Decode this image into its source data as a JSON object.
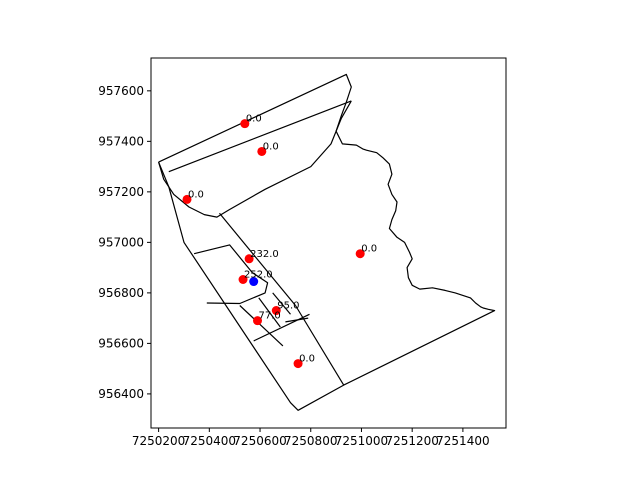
{
  "chart_data": {
    "type": "scatter",
    "title": "",
    "xlabel": "",
    "ylabel": "",
    "xlim": [
      7250170,
      7251570
    ],
    "ylim": [
      956265,
      957730
    ],
    "grid": false,
    "legend": "none",
    "x_ticks": [
      {
        "value": 7250200,
        "label": "7250200"
      },
      {
        "value": 7250400,
        "label": "7250400"
      },
      {
        "value": 7250600,
        "label": "7250600"
      },
      {
        "value": 7250800,
        "label": "7250800"
      },
      {
        "value": 7251000,
        "label": "7251000"
      },
      {
        "value": 7251200,
        "label": "7251200"
      },
      {
        "value": 7251400,
        "label": "7251400"
      }
    ],
    "y_ticks": [
      {
        "value": 956400,
        "label": "956400"
      },
      {
        "value": 956600,
        "label": "956600"
      },
      {
        "value": 956800,
        "label": "956800"
      },
      {
        "value": 957000,
        "label": "957000"
      },
      {
        "value": 957200,
        "label": "957200"
      },
      {
        "value": 957400,
        "label": "957400"
      },
      {
        "value": 957600,
        "label": "957600"
      }
    ],
    "series": [
      {
        "color": "#ff0000",
        "points": [
          {
            "x": 7250540,
            "y": 957470,
            "label": "0.0"
          },
          {
            "x": 7250607,
            "y": 957360,
            "label": "0.0"
          },
          {
            "x": 7250312,
            "y": 957170,
            "label": "0.0"
          },
          {
            "x": 7250995,
            "y": 956955,
            "label": "0.0"
          },
          {
            "x": 7250557,
            "y": 956935,
            "label": "232.0"
          },
          {
            "x": 7250533,
            "y": 956853,
            "label": "252.0"
          },
          {
            "x": 7250664,
            "y": 956730,
            "label": "95.0"
          },
          {
            "x": 7250590,
            "y": 956690,
            "label": "77.0"
          },
          {
            "x": 7250750,
            "y": 956520,
            "label": "0.0"
          }
        ]
      },
      {
        "color": "#0000ff",
        "points": [
          {
            "x": 7250575,
            "y": 956845
          }
        ]
      }
    ],
    "boundaries": [
      {
        "x": [
          7250200,
          7250940,
          7250960,
          7250940,
          7250920,
          7250900,
          7250925,
          7250980,
          7251005,
          7251020,
          7251040,
          7251060,
          7251085,
          7251110,
          7251120,
          7251105,
          7251120,
          7251140,
          7251135,
          7251120,
          7251110,
          7251140,
          7251170,
          7251190,
          7251200,
          7251180,
          7251185,
          7251200,
          7251230,
          7251280,
          7251330,
          7251370,
          7251400,
          7251430,
          7251450,
          7251470,
          7251480,
          7251500,
          7251525,
          7250930,
          7250750,
          7250720,
          7250300,
          7250240,
          7250200
        ],
        "y": [
          957318,
          957665,
          957615,
          957555,
          957500,
          957440,
          957390,
          957385,
          957370,
          957365,
          957360,
          957355,
          957335,
          957310,
          957270,
          957230,
          957190,
          957160,
          957125,
          957090,
          957055,
          957020,
          957000,
          956960,
          956935,
          956900,
          956860,
          956830,
          956815,
          956820,
          956810,
          956800,
          956790,
          956780,
          956760,
          956745,
          956740,
          956735,
          956730,
          956435,
          956335,
          956365,
          957000,
          957220,
          957318
        ]
      },
      {
        "x": [
          7250240,
          7250960
        ],
        "y": [
          957280,
          957560
        ]
      },
      {
        "x": [
          7250200,
          7250220,
          7250260,
          7250320,
          7250380,
          7250430,
          7250480,
          7250620,
          7250800,
          7250880,
          7250920,
          7250960
        ],
        "y": [
          957318,
          957250,
          957190,
          957140,
          957110,
          957100,
          957130,
          957210,
          957300,
          957390,
          957490,
          957560
        ]
      },
      {
        "x": [
          7250440,
          7250740
        ],
        "y": [
          957115,
          956750
        ]
      },
      {
        "x": [
          7250740,
          7250930
        ],
        "y": [
          956750,
          956435
        ]
      },
      {
        "x": [
          7250340,
          7250480,
          7250570,
          7250630,
          7250620,
          7250520,
          7250390
        ],
        "y": [
          956955,
          956990,
          956880,
          956840,
          956800,
          956758,
          956760
        ]
      },
      {
        "x": [
          7250520,
          7250690
        ],
        "y": [
          956750,
          956590
        ]
      },
      {
        "x": [
          7250595,
          7250680
        ],
        "y": [
          956780,
          956665
        ]
      },
      {
        "x": [
          7250650,
          7250720
        ],
        "y": [
          956800,
          956715
        ]
      },
      {
        "x": [
          7250575,
          7250795
        ],
        "y": [
          956610,
          956715
        ]
      },
      {
        "x": [
          7250700,
          7250790
        ],
        "y": [
          956685,
          956700
        ]
      }
    ]
  }
}
